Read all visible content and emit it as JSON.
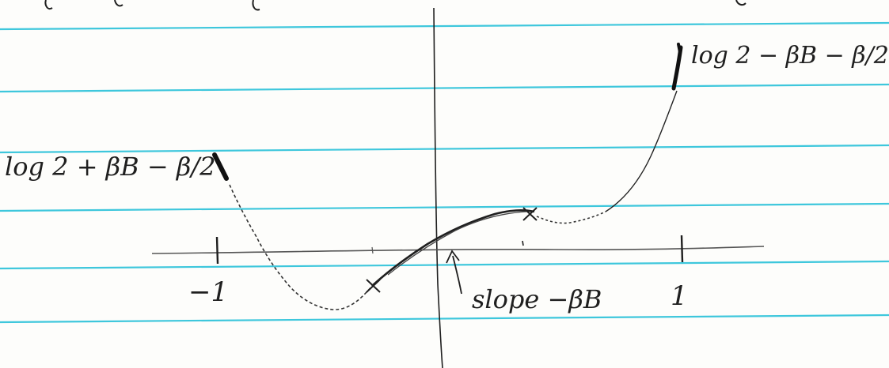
{
  "labels": {
    "left_curve": "log 2 + βB − β/2",
    "right_curve": "log 2 − βB − β/2",
    "origin_slope": "slope −βB",
    "tick_minus_one": "−1",
    "tick_one": "1"
  },
  "colors": {
    "paper": "#fdfdfb",
    "rule_lines": "#3ec7dc",
    "ink": "#1f1f1f",
    "pencil": "#555555"
  }
}
